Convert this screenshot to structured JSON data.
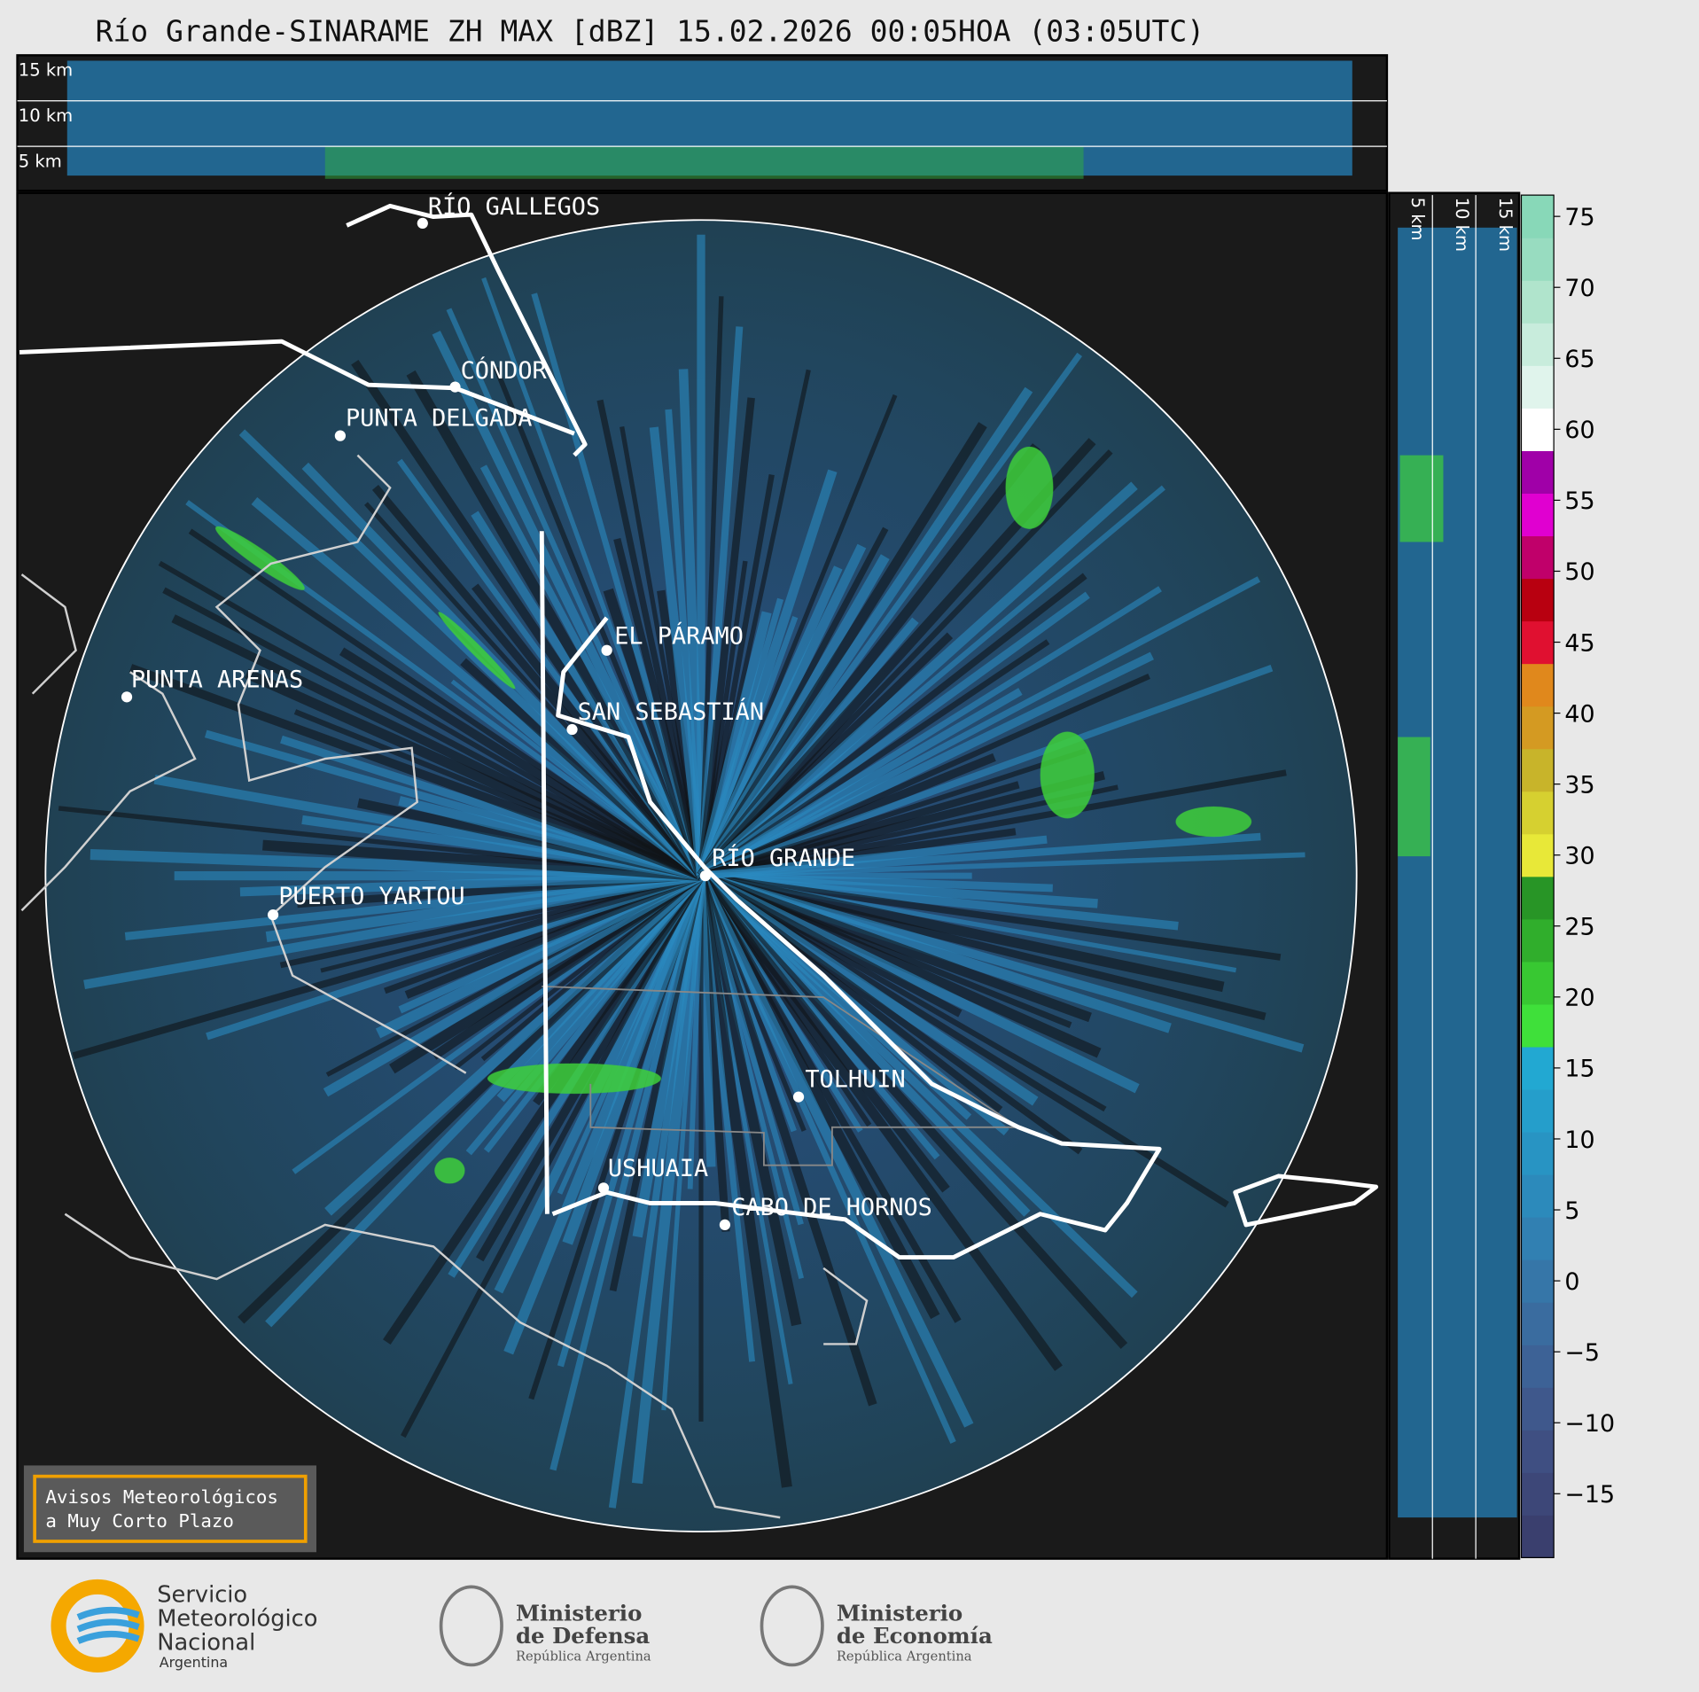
{
  "title": "Río Grande-SINARAME ZH MAX [dBZ] 15.02.2026 00:05HOA (03:05UTC)",
  "top_panel": {
    "height_labels": [
      "15 km",
      "10 km",
      "5 km"
    ]
  },
  "side_panel": {
    "height_labels": [
      "5 km",
      "10 km",
      "15 km"
    ]
  },
  "places": [
    "RÍO GALLEGOS",
    "CÓNDOR",
    "PUNTA DELGADA",
    "EL PÁRAMO",
    "PUNTA ARENAS",
    "SAN SEBASTIÁN",
    "RÍO GRANDE",
    "PUERTO YARTOU",
    "TOLHUIN",
    "USHUAIA",
    "CABO DE HORNOS"
  ],
  "colorbar": {
    "lim": [
      -19.5,
      76.5
    ],
    "ticks": [
      {
        "value": -15,
        "label": "−15"
      },
      {
        "value": -10,
        "label": "−10"
      },
      {
        "value": -5,
        "label": "−5"
      },
      0,
      5,
      10,
      15,
      20,
      25,
      30,
      35,
      40,
      45,
      50,
      55,
      60,
      65,
      70,
      75
    ],
    "colors": [
      "#3a3f6e",
      "#3d4778",
      "#3f4f82",
      "#3f588c",
      "#3d6296",
      "#3a6c9f",
      "#3676a8",
      "#3180b2",
      "#2c8abb",
      "#2894c3",
      "#259ecb",
      "#22a8d2",
      "#3fe03a",
      "#38c832",
      "#30ae2c",
      "#289526",
      "#e8e838",
      "#d6d030",
      "#c8b42a",
      "#d49a22",
      "#e0881c",
      "#e01030",
      "#b80010",
      "#c0006a",
      "#e000d0",
      "#a000a8",
      "#ffffff",
      "#e0f4ec",
      "#c8ecdc",
      "#b0e4cc",
      "#98dcc0",
      "#88d8b8"
    ]
  },
  "notice": [
    "Avisos Meteorológicos",
    "a Muy Corto Plazo"
  ],
  "logos": [
    {
      "lines": [
        "Servicio",
        "Meteorológico",
        "Nacional",
        "Argentina"
      ]
    },
    {
      "lines": [
        "Ministerio",
        "de Defensa",
        "República Argentina"
      ]
    },
    {
      "lines": [
        "Ministerio",
        "de Economía",
        "República Argentina"
      ]
    }
  ]
}
